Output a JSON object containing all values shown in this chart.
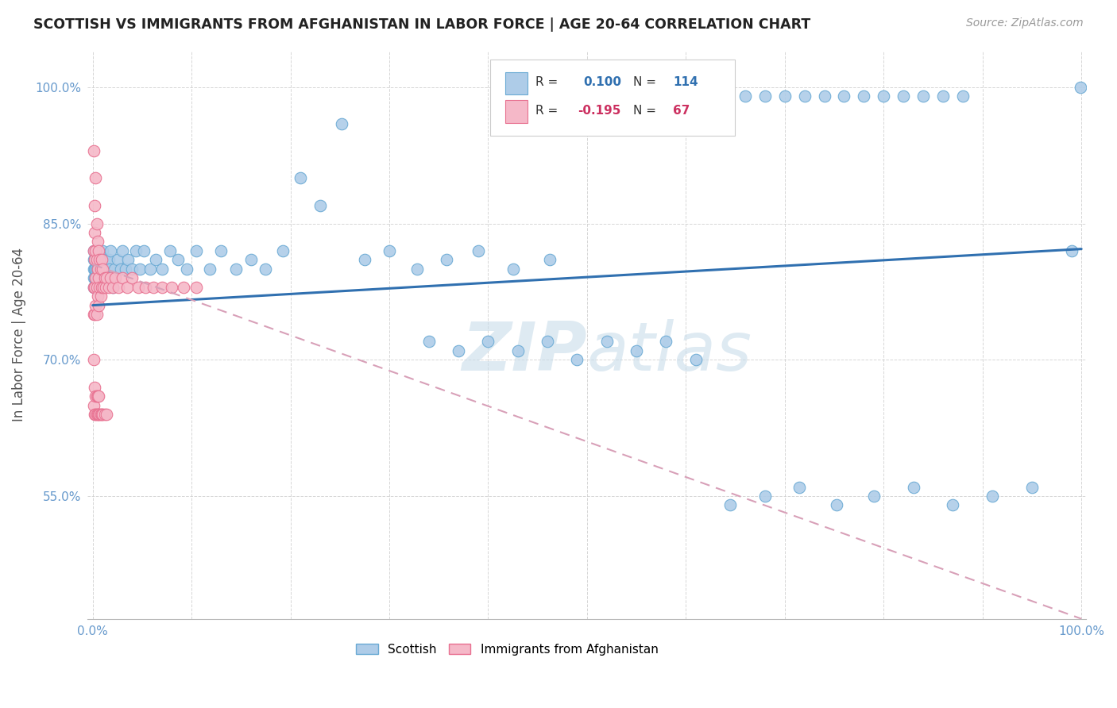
{
  "title": "SCOTTISH VS IMMIGRANTS FROM AFGHANISTAN IN LABOR FORCE | AGE 20-64 CORRELATION CHART",
  "source": "Source: ZipAtlas.com",
  "ylabel": "In Labor Force | Age 20-64",
  "xlim": [
    -0.005,
    1.005
  ],
  "ylim": [
    0.415,
    1.04
  ],
  "x_ticks": [
    0.0,
    0.1,
    0.2,
    0.3,
    0.4,
    0.5,
    0.6,
    0.7,
    0.8,
    0.9,
    1.0
  ],
  "x_tick_labels": [
    "0.0%",
    "",
    "",
    "",
    "",
    "",
    "",
    "",
    "",
    "",
    "100.0%"
  ],
  "y_ticks": [
    0.55,
    0.7,
    0.85,
    1.0
  ],
  "y_tick_labels": [
    "55.0%",
    "70.0%",
    "85.0%",
    "100.0%"
  ],
  "legend_r_blue": "0.100",
  "legend_n_blue": "114",
  "legend_r_pink": "-0.195",
  "legend_n_pink": "67",
  "blue_fill": "#aecce8",
  "blue_edge": "#6aaad4",
  "pink_fill": "#f5b8c8",
  "pink_edge": "#e87090",
  "blue_line_color": "#3070b0",
  "pink_line_color": "#d8a0b8",
  "watermark_color": "#c8dcea",
  "tick_color": "#6699cc",
  "blue_text_color": "#3070b0",
  "pink_text_color": "#cc3060",
  "blue_line_y0": 0.76,
  "blue_line_y1": 0.822,
  "pink_line_y0": 0.805,
  "pink_line_y1": 0.415,
  "scottish_x": [
    0.001,
    0.001,
    0.001,
    0.001,
    0.001,
    0.002,
    0.002,
    0.002,
    0.002,
    0.002,
    0.003,
    0.003,
    0.003,
    0.003,
    0.003,
    0.003,
    0.004,
    0.004,
    0.004,
    0.004,
    0.004,
    0.005,
    0.005,
    0.005,
    0.005,
    0.006,
    0.006,
    0.006,
    0.007,
    0.007,
    0.007,
    0.008,
    0.008,
    0.009,
    0.009,
    0.01,
    0.01,
    0.011,
    0.011,
    0.012,
    0.013,
    0.014,
    0.015,
    0.016,
    0.017,
    0.018,
    0.02,
    0.022,
    0.025,
    0.028,
    0.03,
    0.033,
    0.036,
    0.04,
    0.044,
    0.048,
    0.052,
    0.058,
    0.064,
    0.07,
    0.078,
    0.086,
    0.095,
    0.105,
    0.118,
    0.13,
    0.145,
    0.16,
    0.175,
    0.192,
    0.21,
    0.23,
    0.252,
    0.275,
    0.3,
    0.328,
    0.358,
    0.39,
    0.425,
    0.462,
    0.34,
    0.37,
    0.4,
    0.43,
    0.46,
    0.49,
    0.52,
    0.55,
    0.58,
    0.61,
    0.645,
    0.68,
    0.715,
    0.752,
    0.79,
    0.83,
    0.87,
    0.91,
    0.95,
    0.99,
    0.64,
    0.66,
    0.68,
    0.7,
    0.72,
    0.74,
    0.76,
    0.78,
    0.8,
    0.82,
    0.84,
    0.86,
    0.88,
    0.999
  ],
  "scottish_y": [
    0.81,
    0.82,
    0.8,
    0.79,
    0.78,
    0.81,
    0.8,
    0.79,
    0.82,
    0.78,
    0.8,
    0.81,
    0.82,
    0.79,
    0.78,
    0.8,
    0.81,
    0.8,
    0.79,
    0.82,
    0.78,
    0.8,
    0.81,
    0.79,
    0.82,
    0.8,
    0.81,
    0.79,
    0.8,
    0.82,
    0.79,
    0.8,
    0.81,
    0.79,
    0.8,
    0.81,
    0.82,
    0.8,
    0.79,
    0.8,
    0.81,
    0.8,
    0.79,
    0.81,
    0.8,
    0.82,
    0.78,
    0.8,
    0.81,
    0.8,
    0.82,
    0.8,
    0.81,
    0.8,
    0.82,
    0.8,
    0.82,
    0.8,
    0.81,
    0.8,
    0.82,
    0.81,
    0.8,
    0.82,
    0.8,
    0.82,
    0.8,
    0.81,
    0.8,
    0.82,
    0.9,
    0.87,
    0.96,
    0.81,
    0.82,
    0.8,
    0.81,
    0.82,
    0.8,
    0.81,
    0.72,
    0.71,
    0.72,
    0.71,
    0.72,
    0.7,
    0.72,
    0.71,
    0.72,
    0.7,
    0.54,
    0.55,
    0.56,
    0.54,
    0.55,
    0.56,
    0.54,
    0.55,
    0.56,
    0.82,
    0.99,
    0.99,
    0.99,
    0.99,
    0.99,
    0.99,
    0.99,
    0.99,
    0.99,
    0.99,
    0.99,
    0.99,
    0.99,
    1.0
  ],
  "afghan_x": [
    0.001,
    0.001,
    0.001,
    0.001,
    0.001,
    0.002,
    0.002,
    0.002,
    0.002,
    0.002,
    0.003,
    0.003,
    0.003,
    0.003,
    0.004,
    0.004,
    0.004,
    0.004,
    0.005,
    0.005,
    0.005,
    0.006,
    0.006,
    0.006,
    0.007,
    0.007,
    0.008,
    0.008,
    0.009,
    0.009,
    0.01,
    0.011,
    0.012,
    0.013,
    0.014,
    0.016,
    0.018,
    0.02,
    0.023,
    0.026,
    0.03,
    0.035,
    0.04,
    0.046,
    0.053,
    0.061,
    0.07,
    0.08,
    0.092,
    0.105,
    0.001,
    0.002,
    0.002,
    0.003,
    0.003,
    0.004,
    0.004,
    0.005,
    0.005,
    0.006,
    0.006,
    0.007,
    0.008,
    0.009,
    0.01,
    0.012,
    0.014
  ],
  "afghan_y": [
    0.93,
    0.82,
    0.78,
    0.75,
    0.7,
    0.87,
    0.84,
    0.81,
    0.78,
    0.75,
    0.9,
    0.82,
    0.79,
    0.76,
    0.85,
    0.81,
    0.78,
    0.75,
    0.83,
    0.8,
    0.77,
    0.82,
    0.79,
    0.76,
    0.81,
    0.78,
    0.8,
    0.77,
    0.81,
    0.78,
    0.8,
    0.78,
    0.79,
    0.78,
    0.79,
    0.78,
    0.79,
    0.78,
    0.79,
    0.78,
    0.79,
    0.78,
    0.79,
    0.78,
    0.78,
    0.78,
    0.78,
    0.78,
    0.78,
    0.78,
    0.65,
    0.67,
    0.64,
    0.66,
    0.64,
    0.66,
    0.64,
    0.66,
    0.64,
    0.66,
    0.64,
    0.64,
    0.64,
    0.64,
    0.64,
    0.64,
    0.64
  ]
}
